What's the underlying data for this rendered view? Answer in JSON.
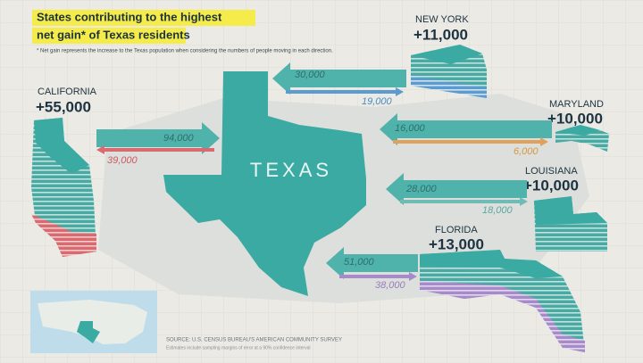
{
  "title": [
    "States contributing to the highest",
    "net gain* of Texas residents"
  ],
  "note": "* Net gain represents the increase to the Texas population when considering the numbers of people moving in each direction.",
  "center_label": "TEXAS",
  "states": [
    {
      "name": "NEW YORK",
      "net_gain": "+11,000",
      "to_texas": "30,000",
      "from_texas": "19,000"
    },
    {
      "name": "MARYLAND",
      "net_gain": "+10,000",
      "to_texas": "16,000",
      "from_texas": "6,000"
    },
    {
      "name": "LOUISIANA",
      "net_gain": "+10,000",
      "to_texas": "28,000",
      "from_texas": "18,000"
    },
    {
      "name": "FLORIDA",
      "net_gain": "+13,000",
      "to_texas": "51,000",
      "from_texas": "38,000"
    },
    {
      "name": "CALIFORNIA",
      "net_gain": "+55,000",
      "to_texas": "94,000",
      "from_texas": "39,000"
    }
  ],
  "source": [
    "SOURCE: U.S. CENSUS BUREAU'S AMERICAN COMMUNITY SURVEY",
    "Estimates include sampling margins of error at a 90% confidence interval"
  ]
}
